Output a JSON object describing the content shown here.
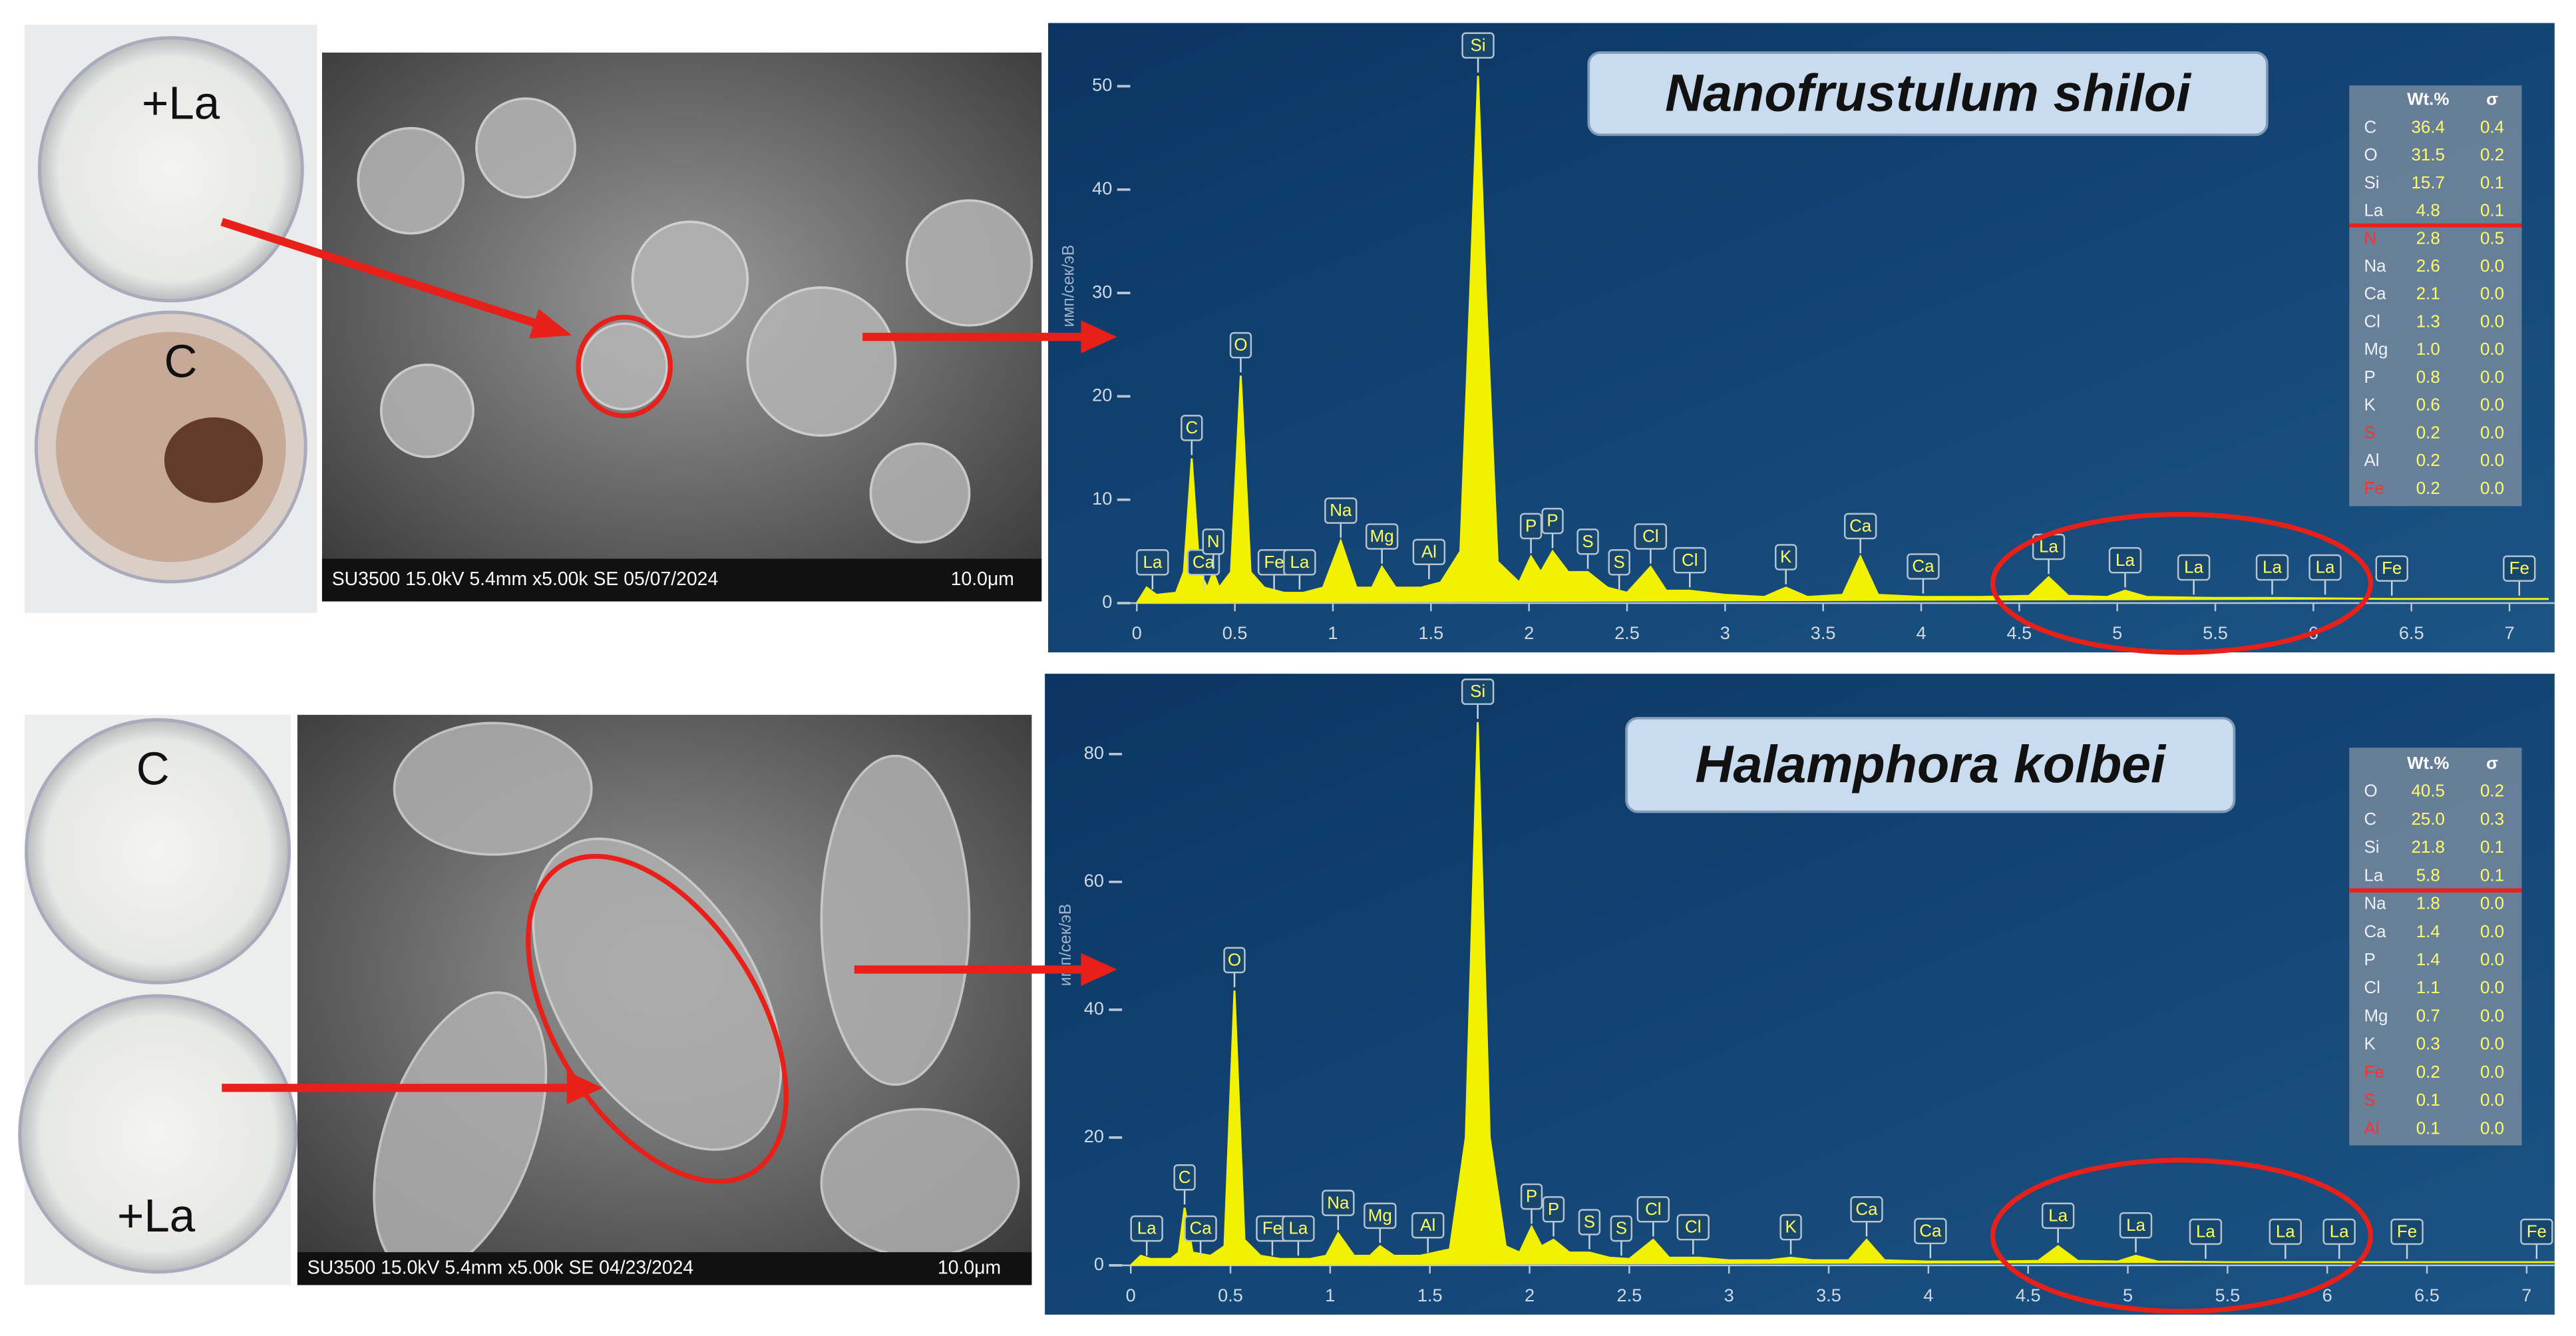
{
  "panels": [
    {
      "photo_labels": [
        "+La",
        "C"
      ],
      "sem_caption": "SU3500 15.0kV 5.4mm x5.00k SE 05/07/2024",
      "sem_scale": "10.0μm"
    },
    {
      "photo_labels": [
        "C",
        "+La"
      ],
      "sem_caption": "SU3500 15.0kV 5.4mm x5.00k SE 04/23/2024",
      "sem_scale": "10.0μm"
    }
  ],
  "chart_data": [
    {
      "type": "line",
      "title": "Nanofrustulum shiloi",
      "y_label": "имп/сек/эВ",
      "color": "#f2f200",
      "xlim": [
        -0.05,
        7.23
      ],
      "ylim": [
        0,
        55
      ],
      "xticks": [
        0,
        0.5,
        1,
        1.5,
        2,
        2.5,
        3,
        3.5,
        4,
        4.5,
        5,
        5.5,
        6,
        6.5,
        7
      ],
      "yticks": [
        0,
        10,
        20,
        30,
        40,
        50
      ],
      "x": [
        0,
        0.05,
        0.1,
        0.2,
        0.24,
        0.28,
        0.32,
        0.36,
        0.39,
        0.42,
        0.48,
        0.53,
        0.58,
        0.65,
        0.75,
        0.85,
        0.95,
        1.04,
        1.12,
        1.2,
        1.25,
        1.32,
        1.45,
        1.55,
        1.65,
        1.7,
        1.74,
        1.78,
        1.84,
        1.95,
        2.01,
        2.06,
        2.12,
        2.2,
        2.3,
        2.4,
        2.5,
        2.62,
        2.7,
        2.82,
        3.0,
        3.2,
        3.31,
        3.42,
        3.6,
        3.69,
        3.78,
        4.0,
        4.3,
        4.55,
        4.65,
        4.75,
        4.95,
        5.04,
        5.15,
        5.5,
        5.8,
        6.4,
        7.0,
        7.2
      ],
      "values": [
        0,
        1.5,
        0.8,
        1,
        3,
        14,
        3,
        1.5,
        3,
        1.5,
        3,
        22,
        3,
        1.5,
        1,
        1,
        1.5,
        6,
        1.5,
        1.5,
        3.5,
        1.5,
        1.5,
        2,
        5,
        30,
        51,
        30,
        4,
        2,
        4.5,
        3,
        5,
        3,
        3,
        1.5,
        1,
        3.5,
        1.2,
        1.2,
        0.8,
        0.6,
        1.5,
        0.6,
        0.8,
        4.5,
        0.8,
        0.6,
        0.6,
        0.7,
        2.5,
        0.7,
        0.6,
        1.2,
        0.6,
        0.5,
        0.5,
        0.4,
        0.4,
        0.4
      ],
      "annotations": [
        {
          "label": "La",
          "x": 0.08,
          "y": 1
        },
        {
          "label": "C",
          "x": 0.28,
          "y": 14
        },
        {
          "label": "Ca",
          "x": 0.34,
          "y": 1
        },
        {
          "label": "N",
          "x": 0.39,
          "y": 3
        },
        {
          "label": "O",
          "x": 0.53,
          "y": 22
        },
        {
          "label": "Fe",
          "x": 0.7,
          "y": 1
        },
        {
          "label": "La",
          "x": 0.83,
          "y": 1
        },
        {
          "label": "Na",
          "x": 1.04,
          "y": 6
        },
        {
          "label": "Mg",
          "x": 1.25,
          "y": 3.5
        },
        {
          "label": "Al",
          "x": 1.49,
          "y": 2
        },
        {
          "label": "Si",
          "x": 1.74,
          "y": 51
        },
        {
          "label": "P",
          "x": 2.01,
          "y": 4.5
        },
        {
          "label": "P",
          "x": 2.12,
          "y": 5
        },
        {
          "label": "S",
          "x": 2.3,
          "y": 3
        },
        {
          "label": "S",
          "x": 2.46,
          "y": 1
        },
        {
          "label": "Cl",
          "x": 2.62,
          "y": 3.5
        },
        {
          "label": "Cl",
          "x": 2.82,
          "y": 1.2
        },
        {
          "label": "K",
          "x": 3.31,
          "y": 1.5
        },
        {
          "label": "Ca",
          "x": 3.69,
          "y": 4.5
        },
        {
          "label": "Ca",
          "x": 4.01,
          "y": 0.6
        },
        {
          "label": "La",
          "x": 4.65,
          "y": 2.5
        },
        {
          "label": "La",
          "x": 5.04,
          "y": 1.2
        },
        {
          "label": "La",
          "x": 5.39,
          "y": 0.5
        },
        {
          "label": "La",
          "x": 5.79,
          "y": 0.5
        },
        {
          "label": "La",
          "x": 6.06,
          "y": 0.5
        },
        {
          "label": "Fe",
          "x": 6.4,
          "y": 0.4
        },
        {
          "label": "Fe",
          "x": 7.05,
          "y": 0.4
        }
      ],
      "table": {
        "columns": [
          "Wt.%",
          "σ"
        ],
        "flagged": [
          "N",
          "S",
          "Fe"
        ],
        "divider_after_row": 3,
        "rows": [
          [
            "C",
            "36.4",
            "0.4"
          ],
          [
            "O",
            "31.5",
            "0.2"
          ],
          [
            "Si",
            "15.7",
            "0.1"
          ],
          [
            "La",
            "4.8",
            "0.1"
          ],
          [
            "N",
            "2.8",
            "0.5"
          ],
          [
            "Na",
            "2.6",
            "0.0"
          ],
          [
            "Ca",
            "2.1",
            "0.0"
          ],
          [
            "Cl",
            "1.3",
            "0.0"
          ],
          [
            "Mg",
            "1.0",
            "0.0"
          ],
          [
            "P",
            "0.8",
            "0.0"
          ],
          [
            "K",
            "0.6",
            "0.0"
          ],
          [
            "S",
            "0.2",
            "0.0"
          ],
          [
            "Al",
            "0.2",
            "0.0"
          ],
          [
            "Fe",
            "0.2",
            "0.0"
          ]
        ]
      }
    },
    {
      "type": "line",
      "title": "Halamphora kolbei",
      "y_label": "имп/сек/эВ",
      "color": "#f2f200",
      "xlim": [
        -0.06,
        7.14
      ],
      "ylim": [
        0,
        90
      ],
      "xticks": [
        0,
        0.5,
        1,
        1.5,
        2,
        2.5,
        3,
        3.5,
        4,
        4.5,
        5,
        5.5,
        6,
        6.5,
        7
      ],
      "yticks": [
        0,
        20,
        40,
        60,
        80
      ],
      "x": [
        0,
        0.05,
        0.1,
        0.2,
        0.24,
        0.27,
        0.31,
        0.4,
        0.47,
        0.52,
        0.57,
        0.65,
        0.75,
        0.9,
        0.98,
        1.04,
        1.12,
        1.2,
        1.25,
        1.32,
        1.45,
        1.6,
        1.68,
        1.74,
        1.8,
        1.88,
        1.95,
        2.01,
        2.06,
        2.12,
        2.2,
        2.3,
        2.4,
        2.5,
        2.62,
        2.7,
        2.85,
        3.0,
        3.2,
        3.31,
        3.42,
        3.6,
        3.69,
        3.78,
        4.0,
        4.3,
        4.55,
        4.65,
        4.75,
        4.95,
        5.04,
        5.15,
        5.5,
        5.8,
        6.4,
        7.0,
        7.14
      ],
      "values": [
        0,
        1.5,
        1,
        1,
        2,
        9,
        2,
        1.5,
        3,
        43,
        4,
        1.5,
        1,
        1,
        1.5,
        5,
        1.5,
        1.5,
        3,
        1.5,
        1.5,
        2.5,
        20,
        85,
        20,
        3,
        2,
        6,
        3,
        4,
        2,
        2,
        1.2,
        1,
        4,
        1.2,
        1.2,
        0.8,
        0.8,
        1.2,
        0.8,
        0.8,
        4,
        0.8,
        0.6,
        0.6,
        0.7,
        3,
        0.7,
        0.6,
        1.5,
        0.6,
        0.5,
        0.5,
        0.5,
        0.5,
        0.5
      ],
      "annotations": [
        {
          "label": "La",
          "x": 0.08,
          "y": 1
        },
        {
          "label": "C",
          "x": 0.27,
          "y": 9
        },
        {
          "label": "Ca",
          "x": 0.35,
          "y": 1
        },
        {
          "label": "O",
          "x": 0.52,
          "y": 43
        },
        {
          "label": "Fe",
          "x": 0.71,
          "y": 1
        },
        {
          "label": "La",
          "x": 0.84,
          "y": 1
        },
        {
          "label": "Na",
          "x": 1.04,
          "y": 5
        },
        {
          "label": "Mg",
          "x": 1.25,
          "y": 3
        },
        {
          "label": "Al",
          "x": 1.49,
          "y": 1.5
        },
        {
          "label": "Si",
          "x": 1.74,
          "y": 85
        },
        {
          "label": "P",
          "x": 2.01,
          "y": 6
        },
        {
          "label": "P",
          "x": 2.12,
          "y": 4
        },
        {
          "label": "S",
          "x": 2.3,
          "y": 2
        },
        {
          "label": "S",
          "x": 2.46,
          "y": 1
        },
        {
          "label": "Cl",
          "x": 2.62,
          "y": 4
        },
        {
          "label": "Cl",
          "x": 2.82,
          "y": 1.2
        },
        {
          "label": "K",
          "x": 3.31,
          "y": 1.2
        },
        {
          "label": "Ca",
          "x": 3.69,
          "y": 4
        },
        {
          "label": "Ca",
          "x": 4.01,
          "y": 0.6
        },
        {
          "label": "La",
          "x": 4.65,
          "y": 3
        },
        {
          "label": "La",
          "x": 5.04,
          "y": 1.5
        },
        {
          "label": "La",
          "x": 5.39,
          "y": 0.5
        },
        {
          "label": "La",
          "x": 5.79,
          "y": 0.5
        },
        {
          "label": "La",
          "x": 6.06,
          "y": 0.5
        },
        {
          "label": "Fe",
          "x": 6.4,
          "y": 0.5
        },
        {
          "label": "Fe",
          "x": 7.05,
          "y": 0.5
        }
      ],
      "table": {
        "columns": [
          "Wt.%",
          "σ"
        ],
        "flagged": [
          "Fe",
          "S",
          "Al"
        ],
        "divider_after_row": 3,
        "rows": [
          [
            "O",
            "40.5",
            "0.2"
          ],
          [
            "C",
            "25.0",
            "0.3"
          ],
          [
            "Si",
            "21.8",
            "0.1"
          ],
          [
            "La",
            "5.8",
            "0.1"
          ],
          [
            "Na",
            "1.8",
            "0.0"
          ],
          [
            "Ca",
            "1.4",
            "0.0"
          ],
          [
            "P",
            "1.4",
            "0.0"
          ],
          [
            "Cl",
            "1.1",
            "0.0"
          ],
          [
            "Mg",
            "0.7",
            "0.0"
          ],
          [
            "K",
            "0.3",
            "0.0"
          ],
          [
            "Fe",
            "0.2",
            "0.0"
          ],
          [
            "S",
            "0.1",
            "0.0"
          ],
          [
            "Al",
            "0.1",
            "0.0"
          ]
        ]
      }
    }
  ]
}
